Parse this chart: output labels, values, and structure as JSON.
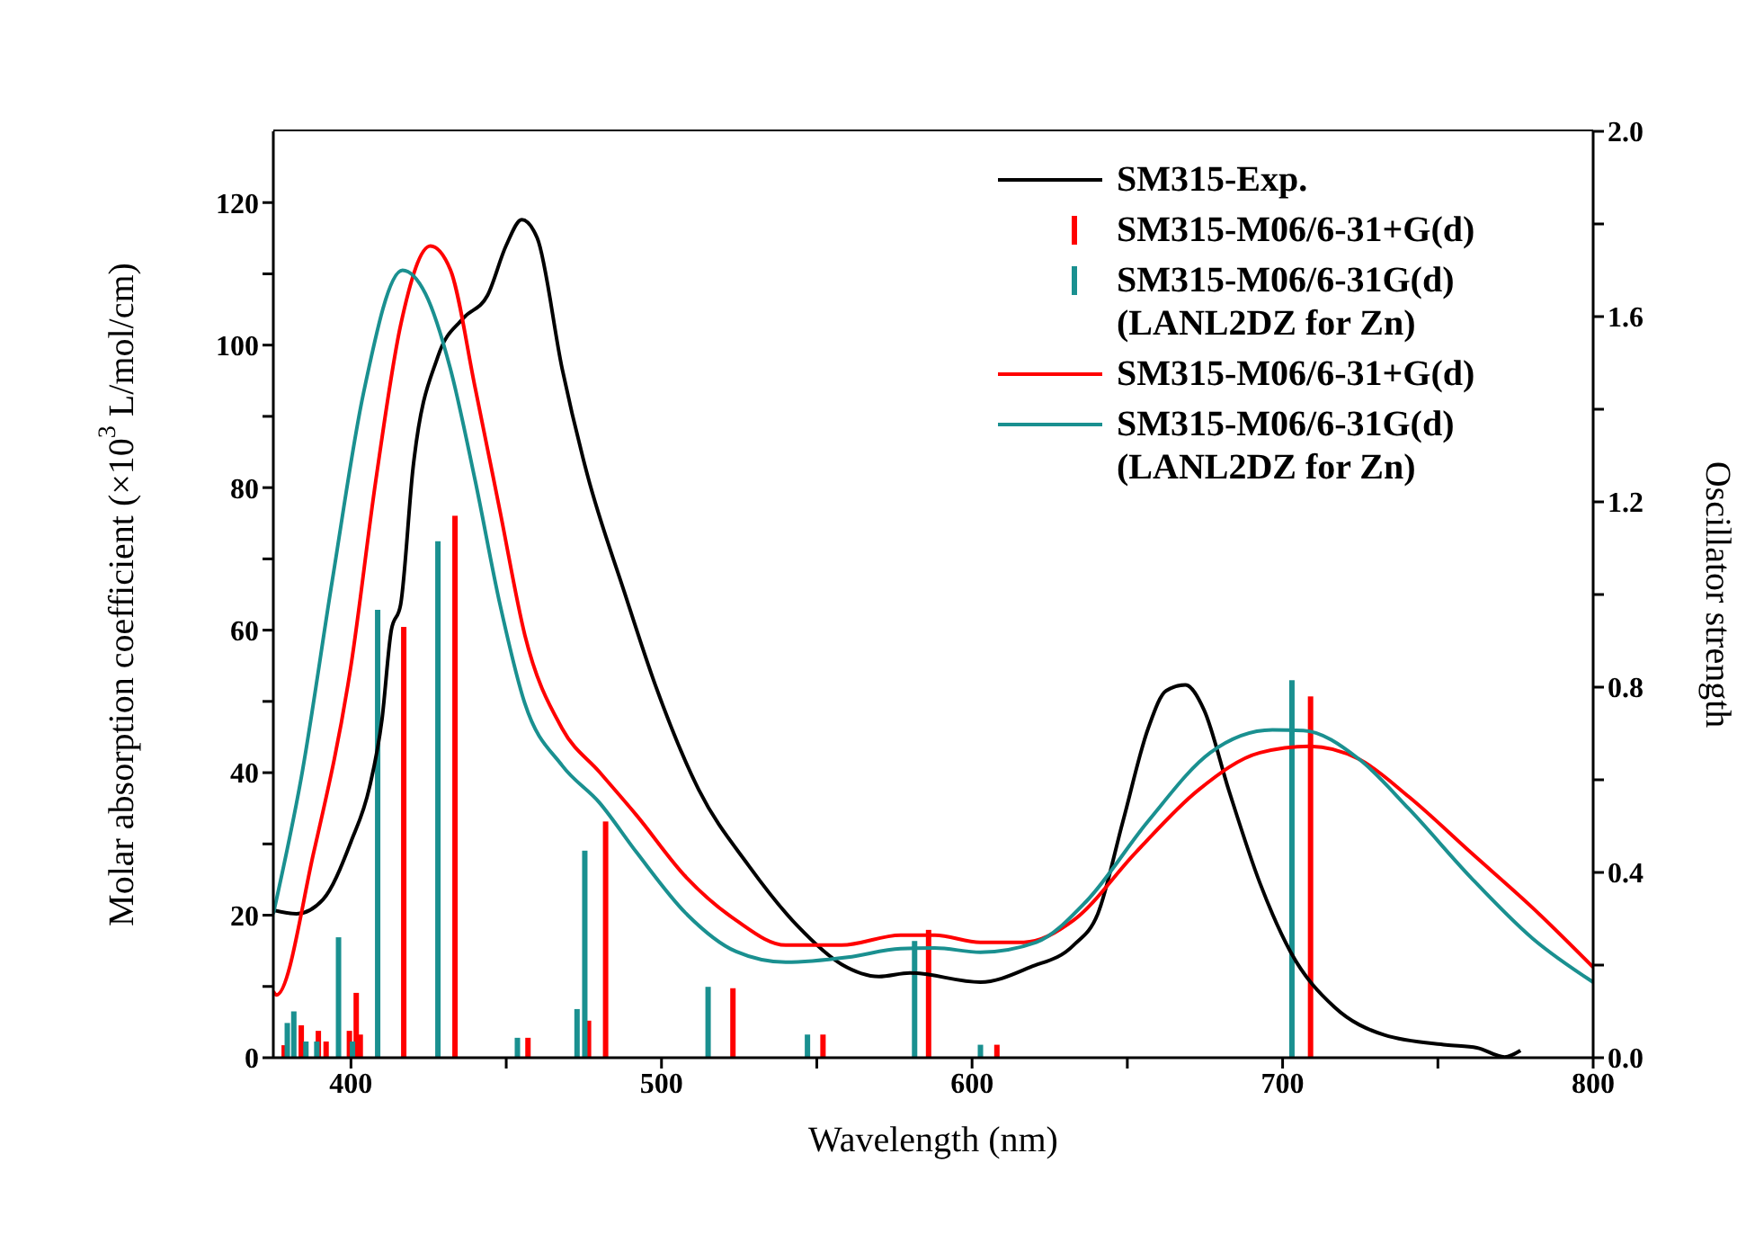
{
  "chart_data": {
    "type": "line",
    "xlabel": "Wavelength (nm)",
    "ylabel": "Molar absorption coefficient (×10$^{3}$ L/mol/cm)",
    "y2label": "Oscillator strength",
    "xlim": [
      375,
      800
    ],
    "xticks": [
      400,
      {
        "value": 450,
        "label": null
      },
      500,
      {
        "value": 550,
        "label": null
      },
      600,
      {
        "value": 650,
        "label": null
      },
      700,
      {
        "value": 750,
        "label": null
      },
      800
    ],
    "ylim": [
      0,
      130
    ],
    "yticks": [
      0,
      {
        "value": 10,
        "label": null
      },
      20,
      {
        "value": 30,
        "label": null
      },
      40,
      {
        "value": 50,
        "label": null
      },
      60,
      {
        "value": 70,
        "label": null
      },
      80,
      {
        "value": 90,
        "label": null
      },
      100,
      {
        "value": 110,
        "label": null
      },
      120
    ],
    "y2lim": [
      0,
      2
    ],
    "y2ticks": [
      {
        "value": 0,
        "label": "0.0"
      },
      {
        "value": 0.2,
        "label": null
      },
      {
        "value": 0.4,
        "label": "0.4"
      },
      {
        "value": 0.6,
        "label": null
      },
      {
        "value": 0.8,
        "label": "0.8"
      },
      {
        "value": 1,
        "label": null
      },
      {
        "value": 1.2,
        "label": "1.2"
      },
      {
        "value": 1.4,
        "label": null
      },
      {
        "value": 1.6,
        "label": "1.6"
      },
      {
        "value": 1.8,
        "label": null
      },
      {
        "value": 2,
        "label": "2.0"
      }
    ],
    "legend": "top right",
    "series": [
      {
        "name": "SM315-Exp.",
        "color": "#000000",
        "x": [
          375,
          382.5,
          391,
          400,
          406,
          410,
          413,
          416,
          420,
          428,
          436,
          444,
          450,
          455,
          460,
          468,
          476,
          488,
          498,
          512,
          528,
          544,
          558,
          570,
          580,
          602.7,
          618.7,
          632.7,
          640.5,
          648.6,
          656.7,
          662.5,
          668.7,
          674.7,
          682.7,
          692.7,
          702.5,
          716.7,
          732.7,
          752.6,
          762.6,
          771.5,
          776.6
        ],
        "values": [
          20.7,
          20.2,
          22.2,
          30.3,
          38,
          47.5,
          60,
          63.6,
          82.8,
          98.4,
          103.7,
          107,
          114,
          117.6,
          115,
          96.7,
          82,
          65.4,
          52.3,
          37.6,
          27,
          18.4,
          13.1,
          11.4,
          11.9,
          10.6,
          12.7,
          15.8,
          20.2,
          33.2,
          46.2,
          51.5,
          52.3,
          48.8,
          37.5,
          24.5,
          14.9,
          7.1,
          3.2,
          1.8,
          1.4,
          0.1,
          1.0
        ]
      },
      {
        "name": "SM315-M06/6-31+G(d)",
        "type": "bar",
        "axis": "y2",
        "color": "#ff0000",
        "x": [
          378.5,
          384,
          389.5,
          392,
          399.5,
          401.7,
          403,
          417,
          433.5,
          457,
          476.5,
          482,
          523,
          552,
          586,
          608,
          709
        ],
        "values": [
          0.027,
          0.07,
          0.058,
          0.035,
          0.058,
          0.14,
          0.05,
          0.93,
          1.17,
          0.043,
          0.08,
          0.51,
          0.15,
          0.05,
          0.276,
          0.028,
          0.78
        ]
      },
      {
        "name": "SM315-M06/6-31G(d) (LANL2DZ for Zn)",
        "type": "bar",
        "axis": "y2",
        "color": "#1a9090",
        "x": [
          379.5,
          381.6,
          385.5,
          389,
          396,
          400.5,
          408.6,
          428,
          453.6,
          472.8,
          475.3,
          515,
          547,
          581.5,
          602.7,
          703
        ],
        "values": [
          0.075,
          0.1,
          0.035,
          0.035,
          0.26,
          0.035,
          0.967,
          1.115,
          0.043,
          0.105,
          0.447,
          0.153,
          0.05,
          0.252,
          0.028,
          0.815
        ]
      },
      {
        "name": "SM315-M06/6-31+G(d)",
        "color": "#ff0000",
        "x": [
          375,
          376,
          388,
          400,
          408,
          416,
          425.6,
          432,
          440,
          448,
          456,
          468,
          480,
          492,
          508,
          524,
          540,
          558,
          577,
          588,
          602.7,
          616.7,
          632.7,
          652.7,
          672.7,
          692.7,
          708.7,
          724.6,
          740.7,
          760.6,
          780.6,
          800
        ],
        "values": [
          9.3,
          8.8,
          28.8,
          55,
          81,
          102.8,
          113.9,
          110.6,
          94,
          76.7,
          59.3,
          46.2,
          40.1,
          34,
          25.3,
          19.3,
          15.8,
          15.8,
          17.2,
          17.2,
          16.2,
          16.2,
          19.3,
          28.8,
          37.5,
          42.8,
          43.7,
          41.9,
          36.6,
          28.8,
          21,
          12.7
        ]
      },
      {
        "name": "SM315-M06/6-31G(d) (LANL2DZ for Zn)",
        "color": "#1a9090",
        "x": [
          375,
          384,
          394,
          404,
          416.6,
          424,
          432,
          440,
          448,
          456,
          468,
          480,
          492,
          508,
          524,
          540,
          560,
          577,
          588,
          602.7,
          620.7,
          636.7,
          656.7,
          676.7,
          696.7,
          706.7,
          724.6,
          740.7,
          760.6,
          780.6,
          800
        ],
        "values": [
          20.2,
          39.3,
          67,
          93.2,
          110.5,
          107.2,
          96.7,
          81,
          63.6,
          49.7,
          41,
          35.8,
          28.8,
          20.2,
          14.9,
          13.4,
          14.1,
          15.3,
          15.4,
          14.8,
          16.2,
          21.9,
          33.2,
          42.8,
          46,
          45.9,
          41.9,
          34.9,
          25.3,
          16.7,
          10.6
        ]
      }
    ]
  }
}
